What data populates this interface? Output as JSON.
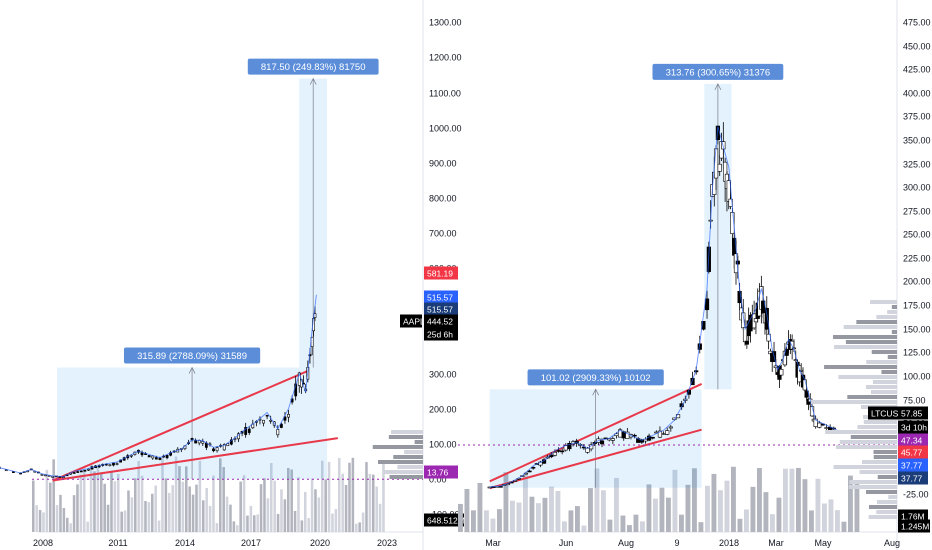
{
  "chart_data": [
    {
      "type": "candlestick",
      "symbol": "AAPL",
      "x_ticks": [
        "2008",
        "2011",
        "2014",
        "2017",
        "2020",
        "2023"
      ],
      "y_ticks": [
        "1300.00",
        "1200.00",
        "1100.00",
        "1000.00",
        "900.00",
        "800.00",
        "700.00",
        "600.00",
        "300.00",
        "200.00",
        "100.00",
        "0.00",
        "-100.00"
      ],
      "ylim": [
        -130,
        1330
      ],
      "series": [
        {
          "values": [
            [
              2005.0,
              38
            ],
            [
              2006.0,
              45
            ],
            [
              2007.0,
              30
            ],
            [
              2007.5,
              40
            ],
            [
              2008.0,
              28
            ],
            [
              2008.5,
              22
            ],
            [
              2009.0,
              20
            ],
            [
              2009.5,
              35
            ],
            [
              2010.0,
              40
            ],
            [
              2010.5,
              48
            ],
            [
              2011.0,
              55
            ],
            [
              2011.5,
              60
            ],
            [
              2012.0,
              75
            ],
            [
              2012.5,
              90
            ],
            [
              2013.0,
              80
            ],
            [
              2013.5,
              72
            ],
            [
              2014.0,
              85
            ],
            [
              2014.5,
              95
            ],
            [
              2015.0,
              120
            ],
            [
              2015.5,
              118
            ],
            [
              2016.0,
              100
            ],
            [
              2016.5,
              105
            ],
            [
              2017.0,
              125
            ],
            [
              2017.5,
              150
            ],
            [
              2018.0,
              170
            ],
            [
              2018.5,
              195
            ],
            [
              2019.0,
              150
            ],
            [
              2019.5,
              205
            ],
            [
              2020.0,
              300
            ],
            [
              2020.3,
              250
            ],
            [
              2020.6,
              420
            ],
            [
              2020.8,
              515
            ]
          ]
        }
      ],
      "measurements": [
        {
          "label": "315.89 (2788.09%) 31589",
          "x_range": [
            2008.7,
            2021.3
          ],
          "y_range": [
            13.76,
            329.65
          ]
        },
        {
          "label": "817.50 (249.83%) 81750",
          "x_range": [
            2020.0,
            2021.3
          ],
          "y_range": [
            329.65,
            1147.15
          ]
        }
      ],
      "price_tags": [
        {
          "value": "581.19",
          "color": "#f23645"
        },
        {
          "value": "515.57",
          "color": "#2962ff"
        },
        {
          "value": "515.57",
          "color": "#1a3c78"
        },
        {
          "value": "AAPL",
          "color": "#000000"
        },
        {
          "value": "444.52",
          "color": "#000000"
        },
        {
          "value": "25d 6h",
          "color": "#000000"
        },
        {
          "value": "13.76",
          "color": "#9c27b0"
        },
        {
          "value": "648.512M",
          "color": "#000000"
        }
      ]
    },
    {
      "type": "candlestick",
      "symbol": "LTCUSD",
      "x_ticks": [
        "Mar",
        "Jun",
        "Aug",
        "9",
        "2018",
        "Mar",
        "May",
        "Aug"
      ],
      "y_ticks": [
        "475.00",
        "450.00",
        "425.00",
        "400.00",
        "375.00",
        "350.00",
        "325.00",
        "300.00",
        "275.00",
        "250.00",
        "225.00",
        "200.00",
        "175.00",
        "150.00",
        "125.00",
        "100.00",
        "75.00",
        "50.00",
        "25.00",
        "0.00",
        "-25.00"
      ],
      "ylim": [
        -40,
        490
      ],
      "series": [
        {
          "values": [
            [
              0,
              4
            ],
            [
              4,
              5
            ],
            [
              8,
              9
            ],
            [
              12,
              15
            ],
            [
              16,
              25
            ],
            [
              20,
              30
            ],
            [
              24,
              40
            ],
            [
              28,
              45
            ],
            [
              32,
              48
            ],
            [
              36,
              42
            ],
            [
              40,
              50
            ],
            [
              44,
              52
            ],
            [
              48,
              60
            ],
            [
              52,
              55
            ],
            [
              56,
              50
            ],
            [
              60,
              55
            ],
            [
              64,
              60
            ],
            [
              68,
              70
            ],
            [
              72,
              90
            ],
            [
              76,
              120
            ],
            [
              80,
              200
            ],
            [
              82,
              300
            ],
            [
              84,
              360
            ],
            [
              86,
              340
            ],
            [
              88,
              320
            ],
            [
              90,
              260
            ],
            [
              92,
              200
            ],
            [
              94,
              160
            ],
            [
              96,
              170
            ],
            [
              98,
              180
            ],
            [
              100,
              200
            ],
            [
              102,
              175
            ],
            [
              104,
              140
            ],
            [
              106,
              120
            ],
            [
              108,
              130
            ],
            [
              110,
              150
            ],
            [
              112,
              140
            ],
            [
              114,
              120
            ],
            [
              116,
              110
            ],
            [
              118,
              90
            ],
            [
              120,
              70
            ],
            [
              124,
              65
            ],
            [
              128,
              60
            ]
          ]
        }
      ],
      "measurements": [
        {
          "label": "101.02 (2909.33%) 10102",
          "x_range": [
            0,
            78
          ],
          "y_range": [
            3.47,
            104.49
          ]
        },
        {
          "label": "313.76 (300.65%) 31376",
          "x_range": [
            79,
            89
          ],
          "y_range": [
            104.49,
            418.25
          ]
        }
      ],
      "price_tags": [
        {
          "value": "LTCUSD",
          "color": "#000000"
        },
        {
          "value": "57.85",
          "color": "#000000"
        },
        {
          "value": "3d 10h",
          "color": "#000000"
        },
        {
          "value": "47.34",
          "color": "#9c27b0"
        },
        {
          "value": "45.77",
          "color": "#f23645"
        },
        {
          "value": "37.77",
          "color": "#2962ff"
        },
        {
          "value": "37.77",
          "color": "#1a3c78"
        },
        {
          "value": "1.76M",
          "color": "#000000"
        },
        {
          "value": "1.245M",
          "color": "#000000"
        }
      ]
    }
  ]
}
